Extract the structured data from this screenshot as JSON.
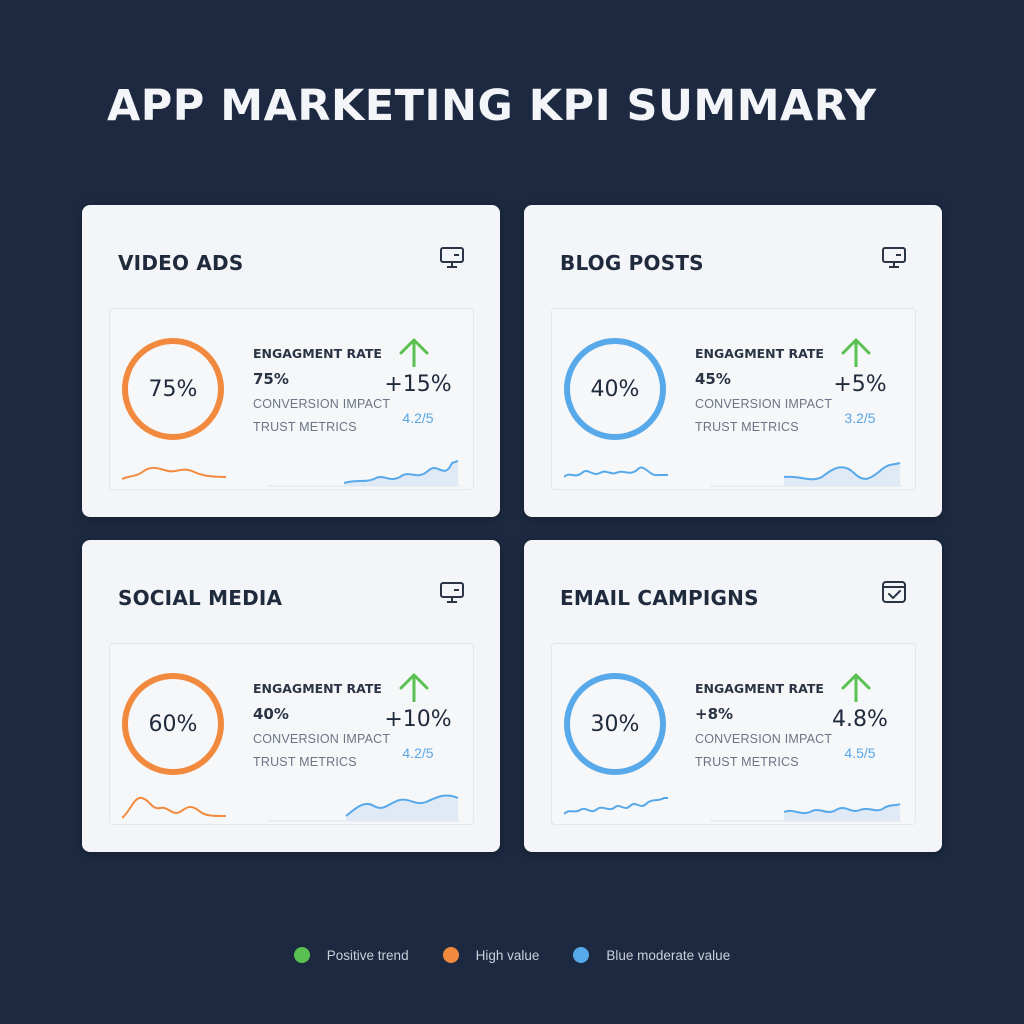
{
  "page": {
    "title": "APP MARKETING KPI SUMMARY"
  },
  "colors": {
    "positive": "#58c152",
    "high": "#f18a3e",
    "moderate": "#58a9ea"
  },
  "cards": [
    {
      "title": "VIDEO ADS",
      "icon": "monitor-icon",
      "ring_value": "75%",
      "ring_fraction": 0.75,
      "ring_color": "high",
      "metric_label": "ENGAGMENT RATE",
      "metric_value": "75%",
      "sub_label_1": "CONVERSION IMPACT",
      "sub_label_2": "TRUST METRICS",
      "change": "+15%",
      "rating": "4.2/5",
      "trend_icon": "trend-up-arrow-icon"
    },
    {
      "title": "BLOG POSTS",
      "icon": "monitor-icon",
      "ring_value": "40%",
      "ring_fraction": 0.4,
      "ring_color": "moderate",
      "metric_label": "ENGAGMENT RATE",
      "metric_value": "45%",
      "sub_label_1": "CONVERSION IMPACT",
      "sub_label_2": "TRUST METRICS",
      "change": "+5%",
      "rating": "3.2/5",
      "trend_icon": "trend-up-arrow-icon"
    },
    {
      "title": "SOCIAL MEDIA",
      "icon": "monitor-icon",
      "ring_value": "60%",
      "ring_fraction": 0.6,
      "ring_color": "high",
      "metric_label": "ENGAGMENT RATE",
      "metric_value": "40%",
      "sub_label_1": "CONVERSION IMPACT",
      "sub_label_2": "TRUST METRICS",
      "change": "+10%",
      "rating": "4.2/5",
      "trend_icon": "trend-up-arrow-icon"
    },
    {
      "title": "EMAIL CAMPIGNS",
      "icon": "calendar-check-icon",
      "ring_value": "30%",
      "ring_fraction": 0.3,
      "ring_color": "moderate",
      "metric_label": "ENGAGMENT RATE",
      "metric_value": "+8%",
      "sub_label_1": "CONVERSION IMPACT",
      "sub_label_2": "TRUST METRICS",
      "change": "4.8%",
      "rating": "4.5/5",
      "trend_icon": "trend-up-arrow-icon"
    }
  ],
  "legend": [
    {
      "label": "Positive trend",
      "color": "#58c152"
    },
    {
      "label": "High value",
      "color": "#f18a3e"
    },
    {
      "label": "Blue moderate value",
      "color": "#58a9ea"
    }
  ]
}
